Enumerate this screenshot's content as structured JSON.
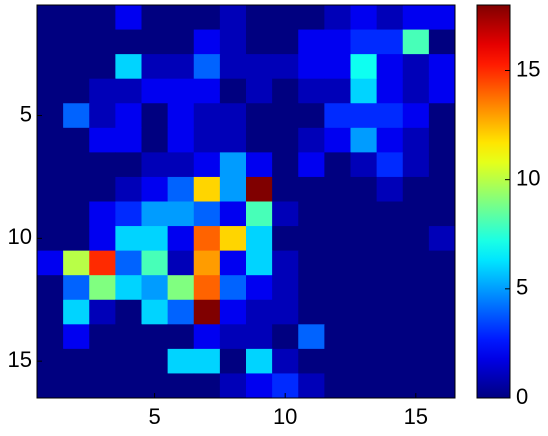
{
  "chart_data": {
    "type": "heatmap",
    "colormap": "jet",
    "xlim": [
      0.5,
      16.5
    ],
    "ylim": [
      16.5,
      0.5
    ],
    "xticks": [
      5,
      10,
      15
    ],
    "yticks": [
      5,
      10,
      15
    ],
    "clim": [
      0,
      18
    ],
    "cticks": [
      0,
      5,
      10,
      15
    ],
    "z": [
      [
        0,
        0,
        0,
        2,
        0,
        0,
        0,
        1,
        0,
        0,
        0,
        1,
        2,
        1,
        2,
        2
      ],
      [
        0,
        0,
        0,
        0,
        0,
        0,
        2,
        1,
        0,
        0,
        2,
        2,
        3,
        3,
        8,
        0
      ],
      [
        0,
        0,
        0,
        6,
        1,
        1,
        4,
        1,
        1,
        1,
        2,
        2,
        7,
        2,
        1,
        2
      ],
      [
        0,
        0,
        1,
        1,
        2,
        2,
        2,
        0,
        1,
        0,
        1,
        1,
        6,
        2,
        1,
        2
      ],
      [
        0,
        4,
        1,
        2,
        0,
        2,
        1,
        1,
        0,
        0,
        0,
        3,
        3,
        3,
        2,
        0
      ],
      [
        0,
        0,
        2,
        2,
        0,
        2,
        1,
        1,
        0,
        0,
        1,
        2,
        5,
        2,
        1,
        0
      ],
      [
        0,
        0,
        0,
        0,
        1,
        1,
        2,
        5,
        2,
        0,
        2,
        0,
        1,
        3,
        1,
        0
      ],
      [
        0,
        0,
        0,
        1,
        2,
        4,
        12,
        5,
        18,
        0,
        0,
        0,
        0,
        1,
        0,
        0
      ],
      [
        0,
        0,
        2,
        3,
        5,
        5,
        4,
        2,
        8,
        1,
        0,
        0,
        0,
        0,
        0,
        0
      ],
      [
        0,
        0,
        2,
        6,
        6,
        2,
        14,
        12,
        6,
        0,
        0,
        0,
        0,
        0,
        0,
        1
      ],
      [
        2,
        10,
        15,
        4,
        8,
        1,
        13,
        2,
        6,
        1,
        0,
        0,
        0,
        0,
        0,
        0
      ],
      [
        0,
        4,
        9,
        6,
        5,
        9,
        14,
        4,
        2,
        1,
        0,
        0,
        0,
        0,
        0,
        0
      ],
      [
        0,
        6,
        1,
        0,
        6,
        4,
        18,
        2,
        1,
        1,
        0,
        0,
        0,
        0,
        0,
        0
      ],
      [
        0,
        2,
        0,
        0,
        0,
        0,
        2,
        1,
        1,
        0,
        4,
        0,
        0,
        0,
        0,
        0
      ],
      [
        0,
        0,
        0,
        0,
        0,
        6,
        6,
        0,
        6,
        1,
        0,
        0,
        0,
        0,
        0,
        0
      ],
      [
        0,
        0,
        0,
        0,
        0,
        0,
        0,
        1,
        2,
        3,
        1,
        0,
        0,
        0,
        0,
        0
      ]
    ]
  }
}
